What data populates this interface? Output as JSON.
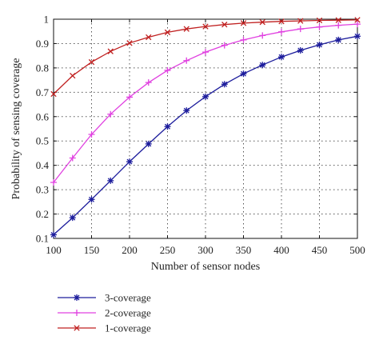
{
  "chart_data": {
    "type": "line",
    "title": "",
    "xlabel": "Number of sensor nodes",
    "ylabel": "Probability of sensing coverage",
    "xlim": [
      100,
      500
    ],
    "ylim": [
      0.1,
      1
    ],
    "xticks": [
      100,
      150,
      200,
      250,
      300,
      350,
      400,
      450,
      500
    ],
    "yticks": [
      0.1,
      0.2,
      0.3,
      0.4,
      0.5,
      0.6,
      0.7,
      0.8,
      0.9,
      1
    ],
    "grid": true,
    "legend_position": "below",
    "x": [
      100,
      125,
      150,
      175,
      200,
      225,
      250,
      275,
      300,
      325,
      350,
      375,
      400,
      425,
      450,
      475,
      500
    ],
    "series": [
      {
        "name": "3-coverage",
        "color": "#1c1c9c",
        "marker": "star",
        "values": [
          0.115,
          0.185,
          0.26,
          0.337,
          0.415,
          0.488,
          0.559,
          0.625,
          0.682,
          0.733,
          0.776,
          0.812,
          0.845,
          0.872,
          0.895,
          0.915,
          0.93
        ]
      },
      {
        "name": "2-coverage",
        "color": "#e040e0",
        "marker": "plus",
        "values": [
          0.33,
          0.43,
          0.527,
          0.61,
          0.68,
          0.74,
          0.79,
          0.83,
          0.865,
          0.893,
          0.915,
          0.933,
          0.948,
          0.96,
          0.968,
          0.975,
          0.98
        ]
      },
      {
        "name": "1-coverage",
        "color": "#c02020",
        "marker": "x",
        "values": [
          0.693,
          0.768,
          0.824,
          0.868,
          0.902,
          0.926,
          0.946,
          0.96,
          0.97,
          0.978,
          0.984,
          0.988,
          0.991,
          0.993,
          0.995,
          0.996,
          0.997
        ]
      }
    ]
  }
}
